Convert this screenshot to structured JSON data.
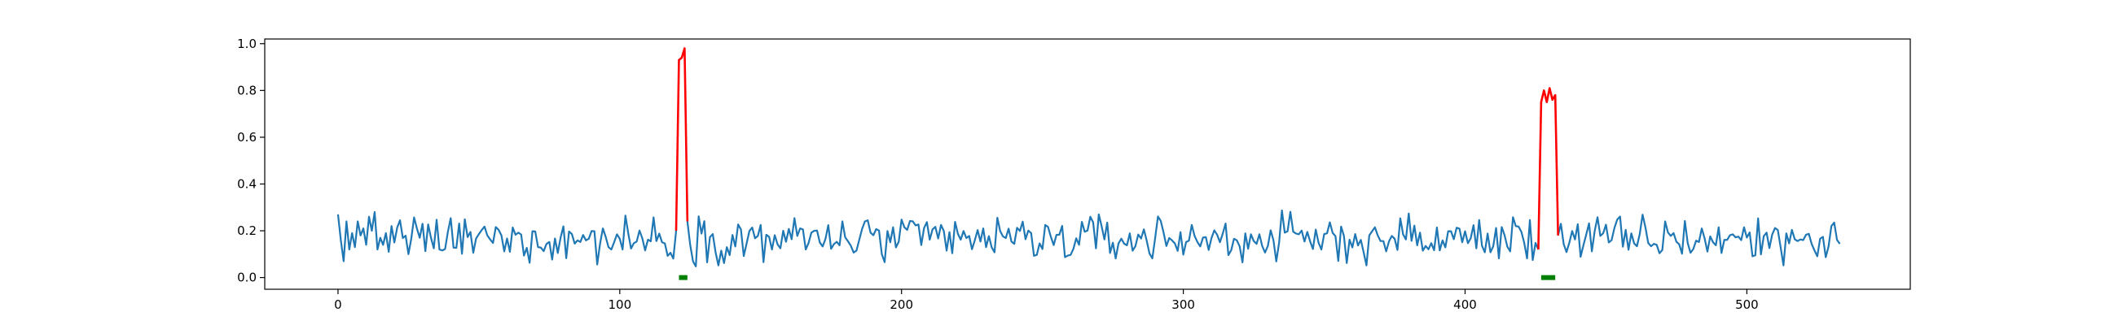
{
  "chart_data": {
    "type": "line",
    "title": "",
    "xlabel": "",
    "ylabel": "",
    "xlim": [
      -26,
      558
    ],
    "ylim": [
      -0.05,
      1.02
    ],
    "x_ticks": [
      0,
      100,
      200,
      300,
      400,
      500
    ],
    "x_tick_labels": [
      "0",
      "100",
      "200",
      "300",
      "400",
      "500"
    ],
    "y_ticks": [
      0.0,
      0.2,
      0.4,
      0.6,
      0.8,
      1.0
    ],
    "y_tick_labels": [
      "0.0",
      "0.2",
      "0.4",
      "0.6",
      "0.8",
      "1.0"
    ],
    "grid": false,
    "legend": "none",
    "n_points": 534,
    "baseline": {
      "description": "noisy signal between about 0.02 and 0.31",
      "min": 0.02,
      "max": 0.31
    },
    "series": [
      {
        "color": "#1f77b4",
        "x_range": [
          0,
          533
        ],
        "segments": [
          {
            "x": [
              0,
              1,
              2,
              3,
              4,
              5,
              6,
              7,
              8,
              9,
              10,
              11,
              12,
              13,
              14,
              15,
              16,
              17,
              18,
              19,
              20
            ],
            "y": [
              0.27,
              0.16,
              0.07,
              0.24,
              0.12,
              0.19,
              0.13,
              0.24,
              0.18,
              0.21,
              0.14,
              0.26,
              0.2,
              0.28,
              0.12,
              0.17,
              0.14,
              0.19,
              0.11,
              0.22,
              0.15
            ]
          }
        ]
      },
      {
        "color": "#ff0000",
        "role": "anomaly",
        "segments": [
          {
            "x": [
              120,
              121,
              122,
              123,
              124
            ],
            "y": [
              0.2,
              0.93,
              0.94,
              0.98,
              0.24
            ]
          },
          {
            "x": [
              426,
              427,
              428,
              429,
              430,
              431,
              432,
              433
            ],
            "y": [
              0.12,
              0.75,
              0.8,
              0.75,
              0.81,
              0.76,
              0.78,
              0.18
            ]
          }
        ]
      }
    ],
    "markers": [
      {
        "color": "#008000",
        "y": 0.0,
        "x_range": [
          121,
          124
        ]
      },
      {
        "color": "#008000",
        "y": 0.0,
        "x_range": [
          427,
          432
        ]
      }
    ]
  }
}
